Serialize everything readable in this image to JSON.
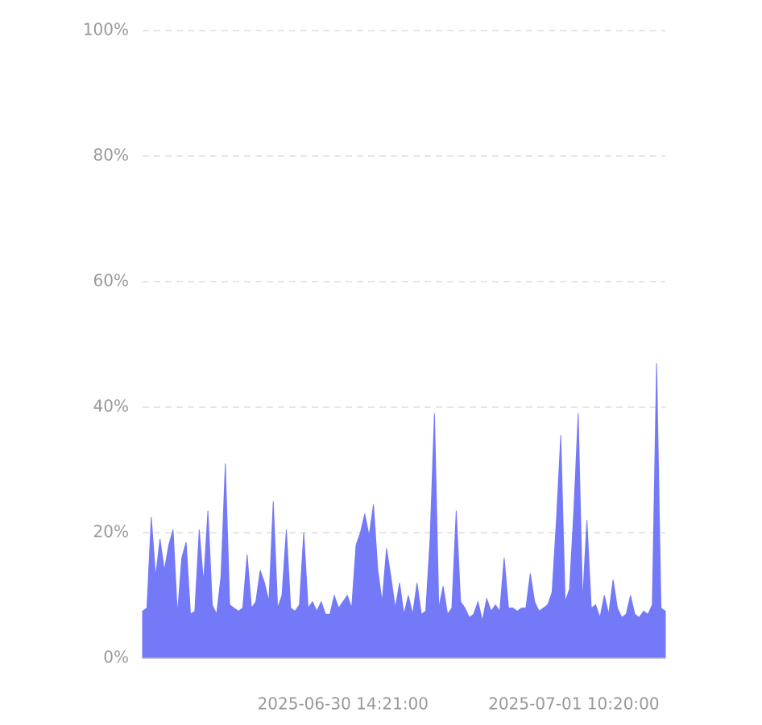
{
  "chart_data": {
    "type": "area",
    "categories": [
      null,
      null,
      null,
      null,
      null,
      null,
      null,
      null,
      null,
      null,
      null,
      null,
      null,
      null,
      null,
      null,
      null,
      null,
      null,
      null,
      null,
      null,
      null,
      null,
      null,
      null,
      null,
      null,
      null,
      null,
      null,
      null,
      null,
      null,
      null,
      null,
      null,
      null,
      null,
      null,
      null,
      null,
      null,
      null,
      null,
      null,
      "2025-06-30 14:21:00",
      null,
      null,
      null,
      null,
      null,
      null,
      null,
      null,
      null,
      null,
      null,
      null,
      null,
      null,
      null,
      null,
      null,
      null,
      null,
      null,
      null,
      null,
      null,
      null,
      null,
      null,
      null,
      null,
      null,
      null,
      null,
      null,
      null,
      null,
      null,
      null,
      null,
      null,
      null,
      null,
      null,
      null,
      null,
      null,
      null,
      null,
      null,
      null,
      null,
      null,
      null,
      null,
      "2025-07-01 10:20:00",
      null,
      null,
      null,
      null,
      null,
      null,
      null,
      null,
      null,
      null,
      null,
      null,
      null,
      null,
      null,
      null,
      null,
      null,
      null,
      null,
      null
    ],
    "values": [
      7.5,
      8,
      22.5,
      13,
      19,
      14,
      18,
      20.5,
      7,
      16,
      18.5,
      7,
      7.5,
      20.5,
      12,
      23.5,
      8.5,
      7,
      13,
      31,
      8.5,
      8,
      7.5,
      8,
      16.5,
      8,
      9,
      14,
      12,
      9,
      25,
      8,
      10,
      20.5,
      8,
      7.5,
      8.5,
      20,
      8,
      9,
      7.5,
      9,
      7,
      7,
      10,
      8,
      9,
      10,
      8,
      18,
      20,
      23,
      19.5,
      24.5,
      14,
      9,
      17.5,
      13,
      8,
      12,
      7,
      10,
      7,
      12,
      7,
      7.5,
      19,
      39,
      8,
      11.5,
      7,
      8,
      23.5,
      9,
      8,
      6.5,
      7,
      9,
      6,
      9.5,
      7.5,
      8.5,
      7.5,
      16,
      8,
      8,
      7.5,
      8,
      8,
      13.5,
      9,
      7.5,
      8,
      8.5,
      10.5,
      22,
      35.5,
      9,
      11,
      23.5,
      39,
      9,
      22,
      8,
      8.5,
      6.5,
      10,
      7,
      12.5,
      8,
      6.5,
      7,
      10,
      7,
      6.5,
      7.5,
      7,
      8.5,
      47,
      8,
      7.5
    ],
    "color": "#7479f7",
    "ylim": [
      0,
      100
    ],
    "yticks": [
      {
        "value": 0,
        "label": "0%"
      },
      {
        "value": 20,
        "label": "20%"
      },
      {
        "value": 40,
        "label": "40%"
      },
      {
        "value": 60,
        "label": "60%"
      },
      {
        "value": 80,
        "label": "80%"
      },
      {
        "value": 100,
        "label": "100%"
      }
    ],
    "grid": true
  }
}
